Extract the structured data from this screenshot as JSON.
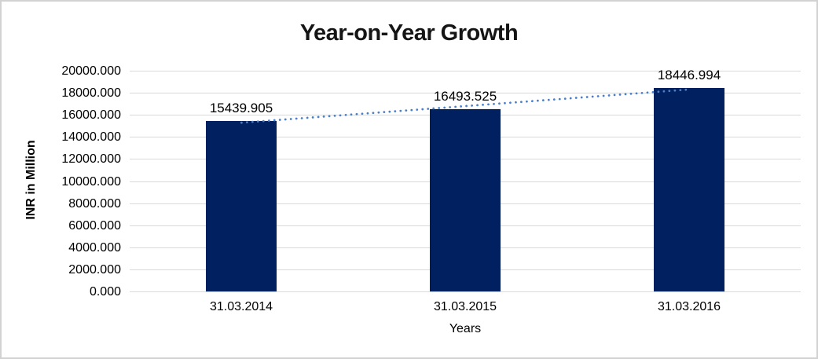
{
  "frame": {
    "background": "#ffffff",
    "border_color": "#d2d2d2"
  },
  "chart_data": {
    "type": "bar",
    "title": "Year-on-Year Growth",
    "xlabel": "Years",
    "ylabel": "INR in Million",
    "categories": [
      "31.03.2014",
      "31.03.2015",
      "31.03.2016"
    ],
    "values": [
      15439.905,
      16493.525,
      18446.994
    ],
    "data_labels": [
      "15439.905",
      "16493.525",
      "18446.994"
    ],
    "ytick_labels": [
      "20000.000",
      "18000.000",
      "16000.000",
      "14000.000",
      "12000.000",
      "10000.000",
      "8000.000",
      "6000.000",
      "4000.000",
      "2000.000",
      "0.000"
    ],
    "ylim": [
      0,
      20000
    ],
    "ytick_step": 2000,
    "grid": true,
    "legend": false,
    "bar_color": "#002060",
    "gridline_color": "#d9d9d9",
    "text_color": "#000000",
    "trendline": {
      "type": "linear",
      "style": "dotted",
      "color": "#4a80c9"
    }
  }
}
